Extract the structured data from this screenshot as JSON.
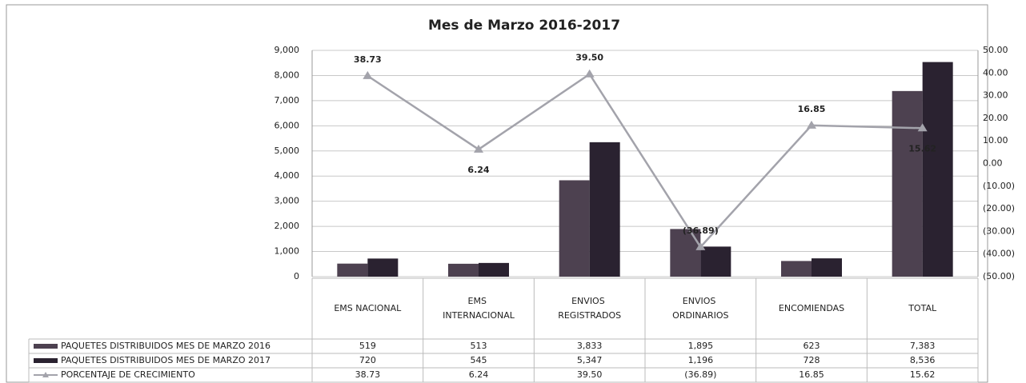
{
  "chart_data": {
    "type": "bar",
    "title": "Mes de Marzo 2016-2017",
    "categories": [
      "EMS NACIONAL",
      "EMS INTERNACIONAL",
      "ENVIOS REGISTRADOS",
      "ENVIOS ORDINARIOS",
      "ENCOMIENDAS",
      "TOTAL"
    ],
    "series": [
      {
        "name": "PAQUETES DISTRIBUIDOS MES DE MARZO 2016",
        "color": "#4d4150",
        "type": "bar",
        "values": [
          519,
          513,
          3833,
          1895,
          623,
          7383
        ],
        "value_labels": [
          "519",
          "513",
          "3,833",
          "1,895",
          "623",
          "7,383"
        ]
      },
      {
        "name": "PAQUETES DISTRIBUIDOS MES DE MARZO 2017",
        "color": "#2a2230",
        "type": "bar",
        "values": [
          720,
          545,
          5347,
          1196,
          728,
          8536
        ],
        "value_labels": [
          "720",
          "545",
          "5,347",
          "1,196",
          "728",
          "8,536"
        ]
      },
      {
        "name": "PORCENTAJE DE CRECIMIENTO",
        "color": "#a3a3ab",
        "type": "line",
        "axis": "y2",
        "values": [
          38.73,
          6.24,
          39.5,
          -36.89,
          16.85,
          15.62
        ],
        "value_labels": [
          "38.73",
          "6.24",
          "39.50",
          "(36.89)",
          "16.85",
          "15.62"
        ]
      }
    ],
    "ylim": [
      0,
      9000
    ],
    "yticks": [
      0,
      {
        "value": 1000,
        "label": "1,000"
      },
      {
        "value": 2000,
        "label": "2,000"
      },
      {
        "value": 3000,
        "label": "3,000"
      },
      {
        "value": 4000,
        "label": "4,000"
      },
      {
        "value": 5000,
        "label": "5,000"
      },
      {
        "value": 6000,
        "label": "6,000"
      },
      {
        "value": 7000,
        "label": "7,000"
      },
      {
        "value": 8000,
        "label": "8,000"
      },
      {
        "value": 9000,
        "label": "9,000"
      }
    ],
    "y2lim": [
      -50,
      50
    ],
    "y2ticks": [
      {
        "value": -50,
        "label": "(50.00)"
      },
      {
        "value": -40,
        "label": "(40.00)"
      },
      {
        "value": -30,
        "label": "(30.00)"
      },
      {
        "value": -20,
        "label": "(20.00)"
      },
      {
        "value": -10,
        "label": "(10.00)"
      },
      {
        "value": 0,
        "label": "0.00"
      },
      {
        "value": 10,
        "label": "10.00"
      },
      {
        "value": 20,
        "label": "20.00"
      },
      {
        "value": 30,
        "label": "30.00"
      },
      {
        "value": 40,
        "label": "40.00"
      },
      {
        "value": 50,
        "label": "50.00"
      }
    ],
    "grid": true
  }
}
